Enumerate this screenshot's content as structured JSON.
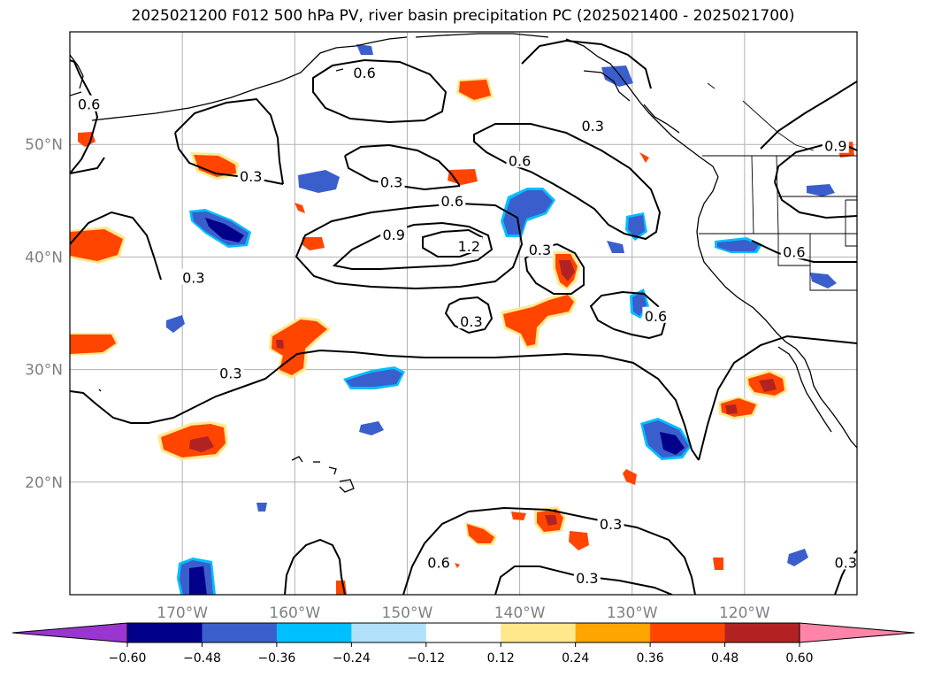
{
  "title": "2025021200 F012 500 hPa PV, river basin precipitation PC (2025021400 - 2025021700)",
  "map": {
    "projection": "equirectangular",
    "lon_range": [
      -180,
      -110
    ],
    "lat_range": [
      10,
      60
    ],
    "grid": true,
    "lat_ticks": [
      {
        "lat": 50,
        "label": "50°N"
      },
      {
        "lat": 40,
        "label": "40°N"
      },
      {
        "lat": 30,
        "label": "30°N"
      },
      {
        "lat": 20,
        "label": "20°N"
      }
    ],
    "lon_ticks": [
      {
        "lon": -170,
        "label": "170°W"
      },
      {
        "lon": -160,
        "label": "160°W"
      },
      {
        "lon": -150,
        "label": "150°W"
      },
      {
        "lon": -140,
        "label": "140°W"
      },
      {
        "lon": -130,
        "label": "130°W"
      },
      {
        "lon": -120,
        "label": "120°W"
      }
    ],
    "contour_labels": [
      {
        "text": "0.6",
        "lon": -153.8,
        "lat": 56.3
      },
      {
        "text": "0.6",
        "lon": -178.3,
        "lat": 53.5
      },
      {
        "text": "0.3",
        "lon": -163.9,
        "lat": 47.1
      },
      {
        "text": "0.3",
        "lon": -151.4,
        "lat": 46.6
      },
      {
        "text": "0.6",
        "lon": -146.0,
        "lat": 44.9
      },
      {
        "text": "0.9",
        "lon": -151.2,
        "lat": 41.9
      },
      {
        "text": "1.2",
        "lon": -144.5,
        "lat": 40.9
      },
      {
        "text": "0.6",
        "lon": -140.0,
        "lat": 48.5
      },
      {
        "text": "0.3",
        "lon": -133.5,
        "lat": 51.6
      },
      {
        "text": "0.3",
        "lon": -138.2,
        "lat": 40.6
      },
      {
        "text": "0.3",
        "lon": -169.0,
        "lat": 38.1
      },
      {
        "text": "0.3",
        "lon": -144.3,
        "lat": 34.2
      },
      {
        "text": "0.6",
        "lon": -127.9,
        "lat": 34.7
      },
      {
        "text": "0.9",
        "lon": -111.9,
        "lat": 49.8
      },
      {
        "text": "0.6",
        "lon": -115.6,
        "lat": 40.4
      },
      {
        "text": "0.3",
        "lon": -165.7,
        "lat": 29.6
      },
      {
        "text": "0.3",
        "lon": -131.9,
        "lat": 16.2
      },
      {
        "text": "0.6",
        "lon": -147.2,
        "lat": 12.8
      },
      {
        "text": "0.3",
        "lon": -134.0,
        "lat": 11.4
      },
      {
        "text": "0.3",
        "lon": -111.0,
        "lat": 12.8
      }
    ]
  },
  "colorbar": {
    "levels": [
      "−0.60",
      "−0.48",
      "−0.36",
      "−0.24",
      "−0.12",
      "0.12",
      "0.24",
      "0.36",
      "0.48",
      "0.60"
    ],
    "colors": [
      "#9a35d0",
      "#00008b",
      "#3a5fcd",
      "#00bfff",
      "#b0e0fa",
      "#ffffff",
      "#ffe88c",
      "#ffa500",
      "#ff4500",
      "#b22222",
      "#ff85a8"
    ],
    "extend": "both"
  }
}
